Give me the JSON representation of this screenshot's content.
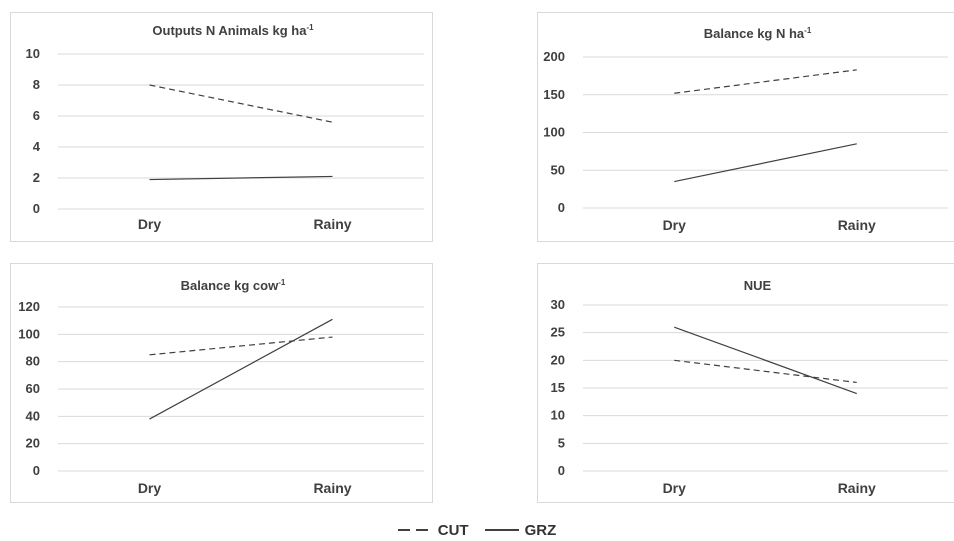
{
  "legend": {
    "cut_label": "CUT",
    "grz_label": "GRZ"
  },
  "colors": {
    "line": "#404040",
    "grid": "#d9d9d9",
    "text": "#404040"
  },
  "chart_data": [
    {
      "type": "line",
      "title": "Outputs N Animals kg ha",
      "title_sup": "-1",
      "categories": [
        "Dry",
        "Rainy"
      ],
      "ylim": [
        0,
        10
      ],
      "yticks": [
        0,
        2,
        4,
        6,
        8,
        10
      ],
      "series": [
        {
          "name": "CUT",
          "style": "dashed",
          "values": [
            8.0,
            5.6
          ]
        },
        {
          "name": "GRZ",
          "style": "solid",
          "values": [
            1.9,
            2.1
          ]
        }
      ]
    },
    {
      "type": "line",
      "title": "Balance kg N ha",
      "title_sup": "-1",
      "categories": [
        "Dry",
        "Rainy"
      ],
      "ylim": [
        0,
        200
      ],
      "yticks": [
        0,
        50,
        100,
        150,
        200
      ],
      "series": [
        {
          "name": "CUT",
          "style": "dashed",
          "values": [
            152,
            183
          ]
        },
        {
          "name": "GRZ",
          "style": "solid",
          "values": [
            35,
            85
          ]
        }
      ]
    },
    {
      "type": "line",
      "title": "Balance kg cow",
      "title_sup": "-1",
      "categories": [
        "Dry",
        "Rainy"
      ],
      "ylim": [
        0,
        120
      ],
      "yticks": [
        0,
        20,
        40,
        60,
        80,
        100,
        120
      ],
      "series": [
        {
          "name": "CUT",
          "style": "dashed",
          "values": [
            85,
            98
          ]
        },
        {
          "name": "GRZ",
          "style": "solid",
          "values": [
            38,
            111
          ]
        }
      ]
    },
    {
      "type": "line",
      "title": "NUE",
      "title_sup": "",
      "categories": [
        "Dry",
        "Rainy"
      ],
      "ylim": [
        0,
        30
      ],
      "yticks": [
        0,
        5,
        10,
        15,
        20,
        25,
        30
      ],
      "series": [
        {
          "name": "CUT",
          "style": "dashed",
          "values": [
            20,
            16
          ]
        },
        {
          "name": "GRZ",
          "style": "solid",
          "values": [
            26,
            14
          ]
        }
      ]
    }
  ]
}
